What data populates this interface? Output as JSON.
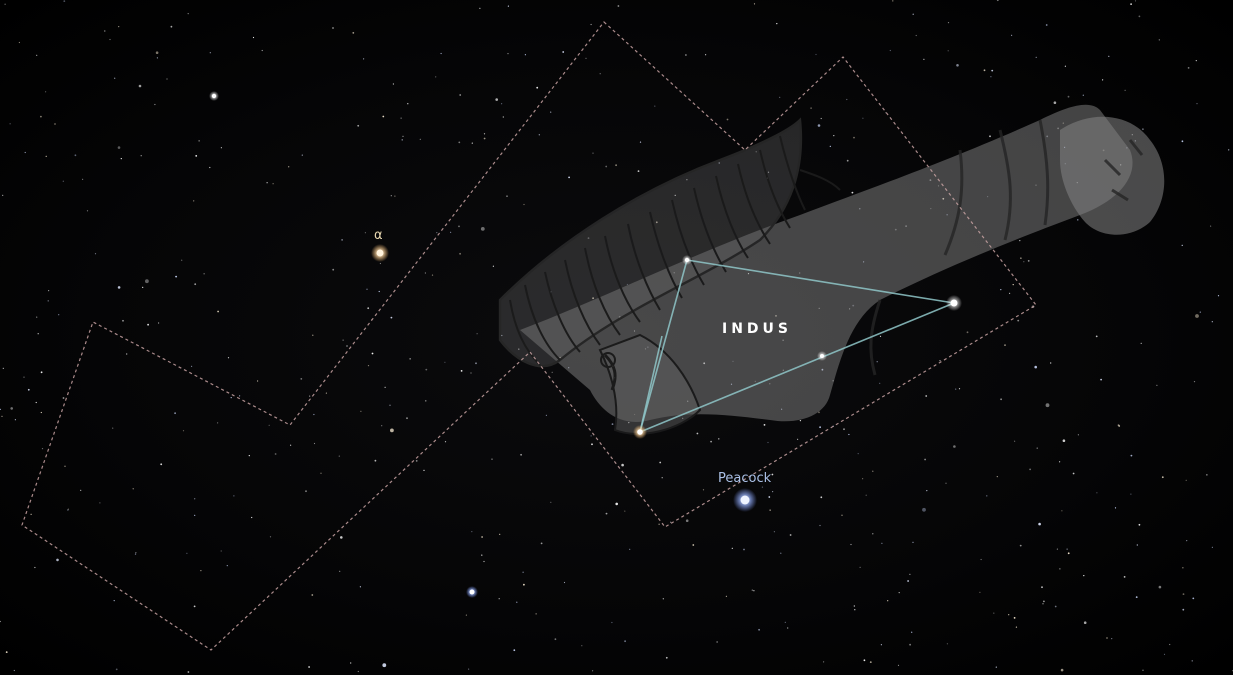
{
  "view": {
    "constellation_name": "INDUS",
    "labels": {
      "alpha": "α",
      "peacock": "Peacock"
    }
  },
  "colors": {
    "background": "#000000",
    "boundary": "#c9a3a3",
    "constellation_line": "#8fc7c9",
    "figure_art": "#9a9a9a",
    "alpha_label": "#e8d7b0",
    "peacock_label": "#aac0e6",
    "constellation_label": "#ffffff"
  },
  "icons": {
    "art": "indian-figure-artwork",
    "star": "star-dot-icon"
  }
}
